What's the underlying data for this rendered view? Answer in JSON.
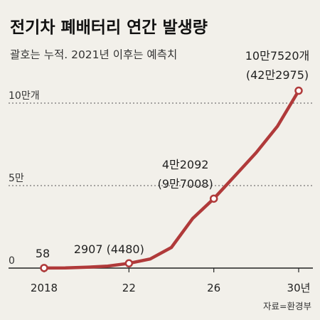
{
  "title": "전기차 폐배터리 연간 발생량",
  "subtitle": "괄호는 누적. 2021년 이후는 예측치",
  "source": "자료=환경부",
  "colors": {
    "line": "#b03a3a",
    "axis": "#222222",
    "grid": "#555555",
    "background": "#f2f0ea",
    "marker_fill": "#ffffff"
  },
  "chart_data": {
    "type": "line",
    "x": [
      2018,
      2019,
      2020,
      2021,
      2022,
      2023,
      2024,
      2025,
      2026,
      2027,
      2028,
      2029,
      2030
    ],
    "series": [
      {
        "values": [
          58,
          100,
          500,
          1200,
          2907,
          5500,
          12500,
          30000,
          42092,
          56000,
          70000,
          86000,
          107520
        ]
      }
    ],
    "marked_points": [
      2018,
      2022,
      2026,
      2030
    ],
    "xticks": [
      {
        "x": 2018,
        "label": "2018"
      },
      {
        "x": 2022,
        "label": "22"
      },
      {
        "x": 2026,
        "label": "26"
      },
      {
        "x": 2030,
        "label": "30년"
      }
    ],
    "yticks": [
      {
        "y": 0,
        "label": "0"
      },
      {
        "y": 50000,
        "label": "5만"
      },
      {
        "y": 100000,
        "label": "10만개"
      }
    ],
    "ylim": [
      0,
      100000
    ],
    "grid": "dashed horizontal",
    "annotations": [
      {
        "x": 2018,
        "lines": [
          "58"
        ]
      },
      {
        "x": 2022,
        "lines": [
          "2907 (4480)"
        ]
      },
      {
        "x": 2026,
        "lines": [
          "4만2092",
          "(9만7008)"
        ]
      },
      {
        "x": 2030,
        "lines": [
          "10만7520개",
          "(42만2975)"
        ]
      }
    ]
  }
}
